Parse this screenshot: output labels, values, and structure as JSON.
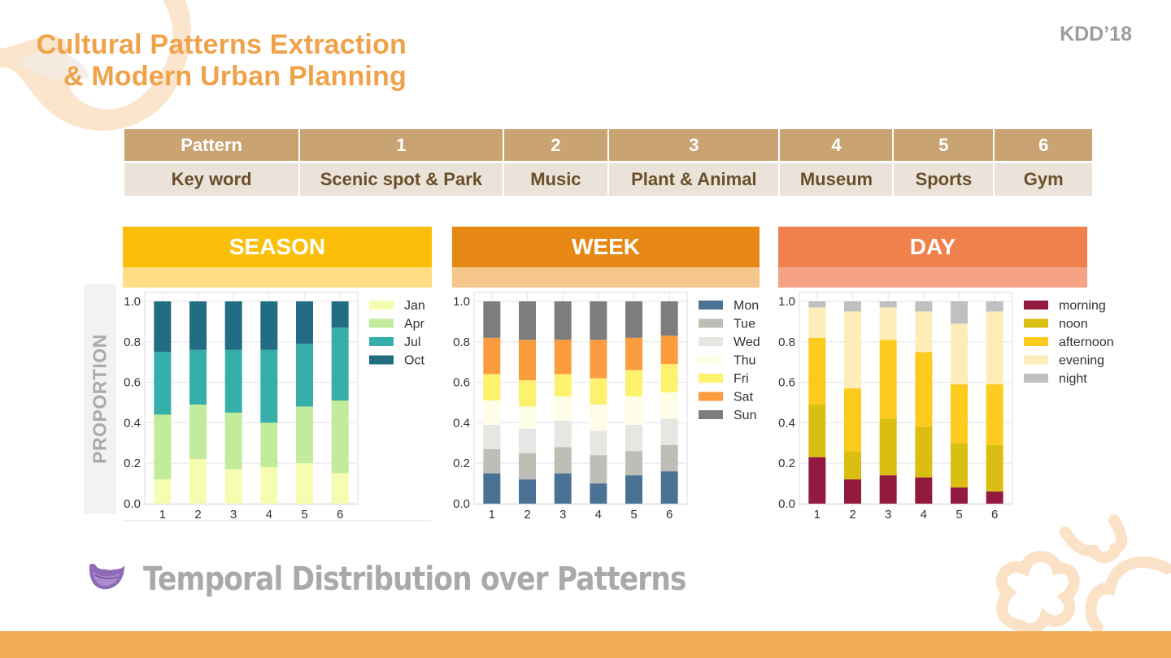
{
  "header": {
    "title_line1": "Cultural Patterns Extraction",
    "title_line2": "& Modern Urban Planning",
    "conference": "KDD’18"
  },
  "pattern_table": {
    "header_row": [
      "Pattern",
      "1",
      "2",
      "3",
      "4",
      "5",
      "6"
    ],
    "keyword_row": [
      "Key word",
      "Scenic spot & Park",
      "Music",
      "Plant & Animal",
      "Museum",
      "Sports",
      "Gym"
    ]
  },
  "y_axis_panel_label": "PROPORTION",
  "colors": {
    "title": "#f0a24a",
    "season_head": "#fbbf0a",
    "season_sub": "#fedd85",
    "week_head": "#e88814",
    "week_sub": "#f6c78d",
    "day_head": "#f0814d",
    "day_sub": "#f5a384",
    "footer": "#f2ad58"
  },
  "chart_data": [
    {
      "type": "bar",
      "stacked": true,
      "title": "SEASON",
      "xlabel": "",
      "ylabel": "PROPORTION",
      "categories": [
        "1",
        "2",
        "3",
        "4",
        "5",
        "6"
      ],
      "ylim": [
        0,
        1.0
      ],
      "yticks": [
        "0.0",
        "0.2",
        "0.4",
        "0.6",
        "0.8",
        "1.0"
      ],
      "grid": true,
      "legend": "right",
      "series": [
        {
          "name": "Jan",
          "color": "#f7fdb0",
          "values": [
            0.12,
            0.22,
            0.17,
            0.18,
            0.2,
            0.15
          ]
        },
        {
          "name": "Apr",
          "color": "#c2eb9c",
          "values": [
            0.32,
            0.27,
            0.28,
            0.22,
            0.28,
            0.36
          ]
        },
        {
          "name": "Jul",
          "color": "#36aeaa",
          "values": [
            0.31,
            0.27,
            0.31,
            0.36,
            0.31,
            0.36
          ]
        },
        {
          "name": "Oct",
          "color": "#226d84",
          "values": [
            0.25,
            0.24,
            0.24,
            0.24,
            0.21,
            0.13
          ]
        }
      ]
    },
    {
      "type": "bar",
      "stacked": true,
      "title": "WEEK",
      "xlabel": "",
      "ylabel": "PROPORTION",
      "categories": [
        "1",
        "2",
        "3",
        "4",
        "5",
        "6"
      ],
      "ylim": [
        0,
        1.0
      ],
      "yticks": [
        "0.0",
        "0.2",
        "0.4",
        "0.6",
        "0.8",
        "1.0"
      ],
      "grid": true,
      "legend": "right",
      "series": [
        {
          "name": "Mon",
          "color": "#4a7294",
          "values": [
            0.15,
            0.12,
            0.15,
            0.1,
            0.14,
            0.16
          ]
        },
        {
          "name": "Tue",
          "color": "#bebdb6",
          "values": [
            0.12,
            0.13,
            0.13,
            0.14,
            0.12,
            0.13
          ]
        },
        {
          "name": "Wed",
          "color": "#e6e6e2",
          "values": [
            0.12,
            0.12,
            0.13,
            0.12,
            0.13,
            0.13
          ]
        },
        {
          "name": "Thu",
          "color": "#fefde8",
          "values": [
            0.12,
            0.11,
            0.12,
            0.13,
            0.14,
            0.13
          ]
        },
        {
          "name": "Fri",
          "color": "#fdf26e",
          "values": [
            0.13,
            0.13,
            0.11,
            0.13,
            0.13,
            0.14
          ]
        },
        {
          "name": "Sat",
          "color": "#fb9d3e",
          "values": [
            0.18,
            0.2,
            0.17,
            0.19,
            0.16,
            0.14
          ]
        },
        {
          "name": "Sun",
          "color": "#7d7d7d",
          "values": [
            0.18,
            0.19,
            0.19,
            0.19,
            0.18,
            0.17
          ]
        }
      ]
    },
    {
      "type": "bar",
      "stacked": true,
      "title": "DAY",
      "xlabel": "",
      "ylabel": "PROPORTION",
      "categories": [
        "1",
        "2",
        "3",
        "4",
        "5",
        "6"
      ],
      "ylim": [
        0,
        1.0
      ],
      "yticks": [
        "0.0",
        "0.2",
        "0.4",
        "0.6",
        "0.8",
        "1.0"
      ],
      "grid": true,
      "legend": "right",
      "series": [
        {
          "name": "morning",
          "color": "#921a3e",
          "values": [
            0.23,
            0.12,
            0.14,
            0.13,
            0.08,
            0.06
          ]
        },
        {
          "name": "noon",
          "color": "#dbbe12",
          "values": [
            0.26,
            0.14,
            0.28,
            0.25,
            0.22,
            0.23
          ]
        },
        {
          "name": "afternoon",
          "color": "#fdcb1e",
          "values": [
            0.33,
            0.31,
            0.39,
            0.37,
            0.29,
            0.3
          ]
        },
        {
          "name": "evening",
          "color": "#feedb8",
          "values": [
            0.15,
            0.38,
            0.16,
            0.2,
            0.3,
            0.36
          ]
        },
        {
          "name": "night",
          "color": "#c0c0c0",
          "values": [
            0.03,
            0.05,
            0.03,
            0.05,
            0.11,
            0.05
          ]
        }
      ]
    }
  ],
  "section_title": "Temporal Distribution over Patterns",
  "icons": {
    "section_bullet": "purple-bowl-icon",
    "decor": "orange-cloud-swirl-decoration"
  }
}
